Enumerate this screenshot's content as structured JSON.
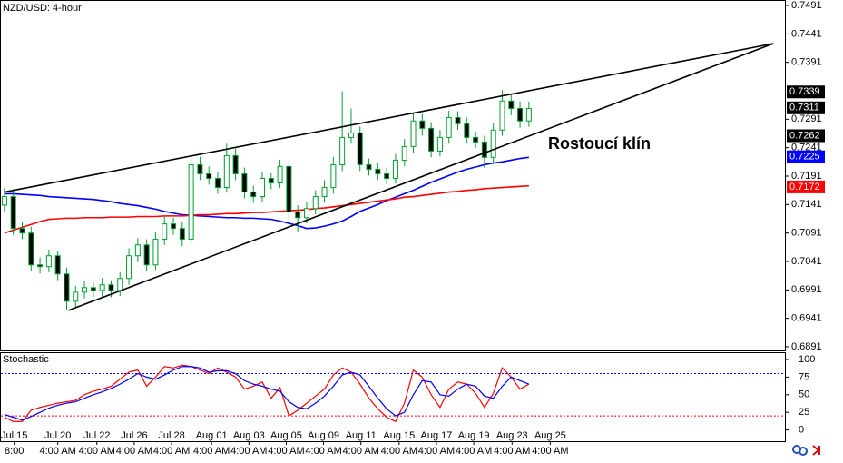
{
  "chart_data": [
    {
      "type": "candlestick",
      "title": "NZD/USD: 4-hour",
      "annotation": "Rostoucí klín",
      "xlim": [
        -0.5,
        87.8
      ],
      "ylim": [
        0.6883,
        0.7499
      ],
      "yticks": [
        0.7491,
        0.7441,
        0.7391,
        0.7291,
        0.7241,
        0.7191,
        0.7141,
        0.7091,
        0.7041,
        0.6991,
        0.6941,
        0.6891
      ],
      "xticks": [
        {
          "value": 1.1,
          "label": "Jul 15"
        },
        {
          "value": 6.0,
          "label": "Jul 20"
        },
        {
          "value": 10.4,
          "label": "Jul 22"
        },
        {
          "value": 14.6,
          "label": "Jul 26"
        },
        {
          "value": 18.8,
          "label": "Jul 28"
        },
        {
          "value": 23.3,
          "label": "Aug 01"
        },
        {
          "value": 27.5,
          "label": "Aug 03"
        },
        {
          "value": 31.7,
          "label": "Aug 05"
        },
        {
          "value": 35.9,
          "label": "Aug 09"
        },
        {
          "value": 40.1,
          "label": "Aug 11"
        },
        {
          "value": 44.4,
          "label": "Aug 15"
        },
        {
          "value": 48.6,
          "label": "Aug 17"
        },
        {
          "value": 52.8,
          "label": "Aug 19"
        },
        {
          "value": 57.1,
          "label": "Aug 23"
        },
        {
          "value": 61.4,
          "label": "Aug 25"
        }
      ],
      "xtick_times": [
        "8:00",
        "4:00 AM",
        "4:00 AM",
        "4:00 AM",
        "4:00 AM",
        "4:00 AM",
        "4:00 AM",
        "4:00 AM",
        "4:00 AM",
        "4:00 AM",
        "4:00 AM",
        "4:00 AM",
        "4:00 AM",
        "4:00 AM",
        "4:00 AM"
      ],
      "up_color": "#ffffff",
      "down_color": "#000000",
      "wick_color": "#00a030",
      "open": [
        0.714,
        0.7155,
        0.7099,
        0.7091,
        0.7035,
        0.7032,
        0.7051,
        0.7019,
        0.6971,
        0.6987,
        0.6995,
        0.699,
        0.7,
        0.699,
        0.7011,
        0.7051,
        0.707,
        0.7035,
        0.708,
        0.7107,
        0.7099,
        0.708,
        0.7211,
        0.7195,
        0.7187,
        0.7171,
        0.7227,
        0.7195,
        0.7163,
        0.7155,
        0.7187,
        0.7179,
        0.7208,
        0.7128,
        0.7118,
        0.7134,
        0.7155,
        0.7171,
        0.7211,
        0.7259,
        0.7267,
        0.7211,
        0.7203,
        0.7195,
        0.7187,
        0.7219,
        0.7243,
        0.7288,
        0.7275,
        0.7235,
        0.7259,
        0.7294,
        0.7283,
        0.7259,
        0.7251,
        0.7224,
        0.7272,
        0.7323,
        0.731,
        0.7288
      ],
      "high": [
        0.717,
        0.7168,
        0.711,
        0.7102,
        0.7048,
        0.7062,
        0.706,
        0.703,
        0.6998,
        0.7006,
        0.7004,
        0.7012,
        0.7008,
        0.7022,
        0.7064,
        0.7082,
        0.708,
        0.7094,
        0.712,
        0.7118,
        0.711,
        0.7224,
        0.7225,
        0.7208,
        0.7198,
        0.7248,
        0.724,
        0.7206,
        0.7174,
        0.7198,
        0.7196,
        0.722,
        0.7218,
        0.714,
        0.7145,
        0.7166,
        0.7184,
        0.7225,
        0.734,
        0.731,
        0.7278,
        0.7222,
        0.7214,
        0.7206,
        0.723,
        0.7256,
        0.7302,
        0.73,
        0.7286,
        0.7272,
        0.7306,
        0.7305,
        0.7294,
        0.727,
        0.7262,
        0.7285,
        0.7342,
        0.7336,
        0.7322,
        0.7322
      ],
      "low": [
        0.7128,
        0.7088,
        0.708,
        0.7024,
        0.702,
        0.7022,
        0.7008,
        0.6955,
        0.696,
        0.6976,
        0.6978,
        0.6979,
        0.6978,
        0.698,
        0.7,
        0.704,
        0.7024,
        0.7026,
        0.707,
        0.7088,
        0.7068,
        0.707,
        0.7184,
        0.7176,
        0.716,
        0.7162,
        0.7184,
        0.7152,
        0.7144,
        0.7146,
        0.7168,
        0.717,
        0.7116,
        0.7092,
        0.7108,
        0.7124,
        0.7144,
        0.716,
        0.72,
        0.7248,
        0.72,
        0.7192,
        0.7184,
        0.7176,
        0.7178,
        0.7208,
        0.7232,
        0.7262,
        0.7224,
        0.7226,
        0.7248,
        0.7272,
        0.7248,
        0.724,
        0.7205,
        0.7214,
        0.7262,
        0.7298,
        0.7276,
        0.7278
      ],
      "close": [
        0.7155,
        0.7099,
        0.7091,
        0.7035,
        0.7032,
        0.7051,
        0.7019,
        0.6971,
        0.6987,
        0.6995,
        0.699,
        0.7,
        0.699,
        0.7011,
        0.7051,
        0.707,
        0.7035,
        0.708,
        0.7107,
        0.7099,
        0.708,
        0.7211,
        0.7195,
        0.7187,
        0.7171,
        0.7227,
        0.7195,
        0.7163,
        0.7155,
        0.7187,
        0.7179,
        0.7208,
        0.7128,
        0.7118,
        0.7134,
        0.7155,
        0.7171,
        0.7211,
        0.7259,
        0.7267,
        0.7211,
        0.7203,
        0.7195,
        0.7187,
        0.7219,
        0.7243,
        0.7288,
        0.7275,
        0.7235,
        0.7259,
        0.7294,
        0.7283,
        0.7259,
        0.7251,
        0.7224,
        0.7272,
        0.7323,
        0.731,
        0.7288,
        0.731
      ],
      "overlays": [
        {
          "color": "#0000ff",
          "values": [
            0.716,
            0.716,
            0.7159,
            0.7158,
            0.7157,
            0.7155,
            0.7154,
            0.7153,
            0.7152,
            0.7151,
            0.715,
            0.7148,
            0.7146,
            0.7143,
            0.7141,
            0.7139,
            0.7136,
            0.7133,
            0.7129,
            0.7126,
            0.7123,
            0.7122,
            0.7121,
            0.712,
            0.7119,
            0.7118,
            0.7118,
            0.7117,
            0.7117,
            0.7116,
            0.7115,
            0.7112,
            0.7108,
            0.7104,
            0.7099,
            0.71,
            0.7103,
            0.7107,
            0.7112,
            0.712,
            0.7129,
            0.7135,
            0.7141,
            0.7148,
            0.7154,
            0.716,
            0.7166,
            0.7173,
            0.718,
            0.7186,
            0.7192,
            0.7198,
            0.7203,
            0.7207,
            0.7211,
            0.7214,
            0.7216,
            0.7219,
            0.7222,
            0.7224
          ]
        },
        {
          "color": "#ff0000",
          "values": [
            0.7091,
            0.7096,
            0.7101,
            0.7106,
            0.7111,
            0.7115,
            0.7116,
            0.7117,
            0.7117,
            0.7118,
            0.7118,
            0.7118,
            0.7119,
            0.7119,
            0.7119,
            0.712,
            0.712,
            0.712,
            0.7121,
            0.7121,
            0.7121,
            0.7122,
            0.7123,
            0.7123,
            0.7124,
            0.7125,
            0.7125,
            0.7126,
            0.7127,
            0.7127,
            0.7128,
            0.7129,
            0.713,
            0.7131,
            0.7132,
            0.7134,
            0.7135,
            0.7137,
            0.7139,
            0.7141,
            0.7143,
            0.7145,
            0.7147,
            0.7149,
            0.7151,
            0.7154,
            0.7155,
            0.7157,
            0.7159,
            0.7161,
            0.7163,
            0.7164,
            0.7166,
            0.7167,
            0.7169,
            0.717,
            0.7171,
            0.7172,
            0.7173,
            0.7174
          ]
        }
      ],
      "trendlines": [
        [
          [
            0.0,
            0.7163
          ],
          [
            86.5,
            0.7424
          ]
        ],
        [
          [
            7.2,
            0.6955
          ],
          [
            86.5,
            0.7424
          ]
        ]
      ],
      "price_tags": [
        {
          "value": 0.7339,
          "color": "#000000"
        },
        {
          "value": 0.7311,
          "color": "#000000"
        },
        {
          "value": 0.7262,
          "color": "#000000"
        },
        {
          "value": 0.7225,
          "color": "#0000ff"
        },
        {
          "value": 0.7172,
          "color": "#ff0000"
        }
      ]
    },
    {
      "type": "line",
      "title": "Stochastic",
      "xlim": [
        -0.5,
        87.8
      ],
      "ylim": [
        -16,
        109
      ],
      "yticks": [
        100,
        75,
        50,
        25,
        0
      ],
      "levels": [
        {
          "value": 80,
          "color": "#0000ff"
        },
        {
          "value": 20,
          "color": "#ff0000"
        }
      ],
      "series": [
        {
          "color": "#ff0000",
          "values": [
            18,
            12,
            12,
            28,
            32,
            35,
            38,
            40,
            42,
            50,
            55,
            58,
            62,
            72,
            82,
            85,
            62,
            75,
            90,
            88,
            92,
            90,
            85,
            80,
            88,
            82,
            75,
            58,
            62,
            68,
            45,
            60,
            20,
            28,
            38,
            48,
            58,
            78,
            88,
            82,
            65,
            45,
            30,
            18,
            12,
            38,
            85,
            75,
            50,
            32,
            58,
            68,
            65,
            52,
            32,
            52,
            88,
            75,
            58,
            65
          ]
        },
        {
          "color": "#0000ff",
          "values": [
            22,
            18,
            14,
            19,
            25,
            31,
            35,
            38,
            40,
            45,
            50,
            54,
            59,
            65,
            72,
            80,
            75,
            72,
            78,
            85,
            90,
            90,
            88,
            82,
            84,
            84,
            80,
            70,
            65,
            62,
            58,
            55,
            40,
            32,
            30,
            38,
            48,
            62,
            78,
            82,
            78,
            62,
            45,
            30,
            20,
            25,
            50,
            70,
            68,
            50,
            48,
            58,
            65,
            62,
            48,
            45,
            62,
            75,
            70,
            65
          ]
        }
      ]
    }
  ]
}
